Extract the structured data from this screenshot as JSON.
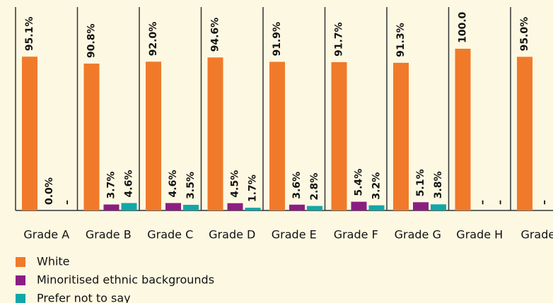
{
  "chart_data": {
    "type": "bar",
    "categories": [
      "Grade A",
      "Grade B",
      "Grade C",
      "Grade D",
      "Grade E",
      "Grade F",
      "Grade G",
      "Grade H",
      "Grade I"
    ],
    "series": [
      {
        "name": "White",
        "color": "#f07a2a",
        "values": [
          95.1,
          90.8,
          92.0,
          94.6,
          91.9,
          91.7,
          91.3,
          100.0,
          95.0
        ],
        "value_labels": [
          "95.1%",
          "90.8%",
          "92.0%",
          "94.6%",
          "91.9%",
          "91.7%",
          "91.3%",
          "100.0",
          "95.0%"
        ]
      },
      {
        "name": "Minoritised ethnic backgrounds",
        "color": "#8b1d82",
        "values": [
          0,
          3.7,
          4.6,
          4.5,
          3.6,
          5.4,
          5.1,
          null,
          null
        ],
        "value_labels": [
          "0.0%",
          "3.7%",
          "4.6%",
          "4.5%",
          "3.6%",
          "5.4%",
          "5.1%",
          "–",
          "–"
        ]
      },
      {
        "name": "Prefer not to say",
        "color": "#11a7a9",
        "values": [
          null,
          4.6,
          3.5,
          1.7,
          2.8,
          3.2,
          3.8,
          null,
          null
        ],
        "value_labels": [
          "–",
          "4.6%",
          "3.5%",
          "1.7%",
          "2.8%",
          "3.2%",
          "3.8%",
          "–",
          "–"
        ]
      }
    ]
  }
}
